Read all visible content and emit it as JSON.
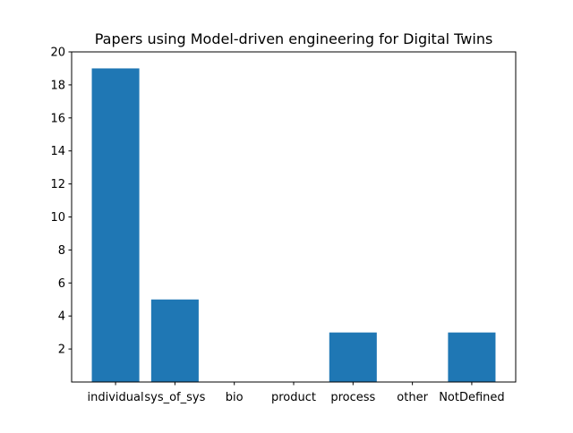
{
  "chart_data": {
    "type": "bar",
    "title": "Papers using Model-driven engineering for Digital Twins",
    "xlabel": "",
    "ylabel": "",
    "categories": [
      "individual",
      "sys_of_sys",
      "bio",
      "product",
      "process",
      "other",
      "NotDefined"
    ],
    "values": [
      19,
      5,
      0,
      0,
      3,
      0,
      3
    ],
    "ylim": [
      0,
      20
    ],
    "yticks": [
      2,
      4,
      6,
      8,
      10,
      12,
      14,
      16,
      18,
      20
    ],
    "grid": false,
    "bar_color": "#1f77b4"
  }
}
